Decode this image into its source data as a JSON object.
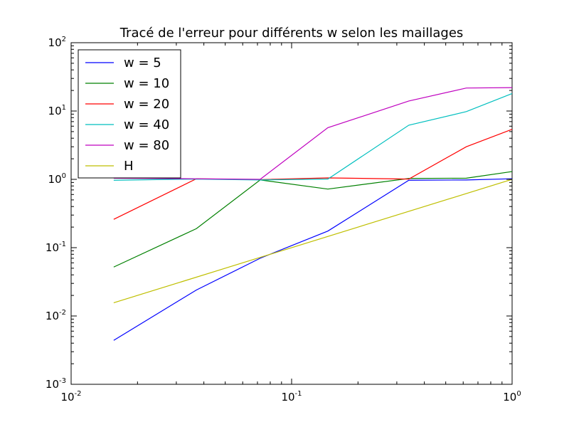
{
  "chart_data": {
    "type": "line",
    "title": "Tracé de l'erreur pour différents w selon les maillages",
    "xlabel": "",
    "ylabel": "",
    "xscale": "log",
    "yscale": "log",
    "xlim": [
      0.01,
      1
    ],
    "ylim": [
      0.001,
      100
    ],
    "xticks": [
      {
        "base": "10",
        "exp": "-2"
      },
      {
        "base": "10",
        "exp": "-1"
      },
      {
        "base": "10",
        "exp": "0"
      }
    ],
    "yticks": [
      {
        "base": "10",
        "exp": "-3"
      },
      {
        "base": "10",
        "exp": "-2"
      },
      {
        "base": "10",
        "exp": "-1"
      },
      {
        "base": "10",
        "exp": "0"
      },
      {
        "base": "10",
        "exp": "1"
      },
      {
        "base": "10",
        "exp": "2"
      }
    ],
    "grid": false,
    "legend_position": "top-left",
    "series": [
      {
        "name": "w = 5",
        "color": "#0000ff",
        "x": [
          0.0156,
          0.037,
          0.072,
          0.146,
          0.34,
          0.62,
          1.0
        ],
        "y": [
          0.0044,
          0.024,
          0.07,
          0.175,
          0.97,
          0.98,
          1.02
        ]
      },
      {
        "name": "w = 10",
        "color": "#008000",
        "x": [
          0.0156,
          0.037,
          0.072,
          0.146,
          0.34,
          0.62,
          1.0
        ],
        "y": [
          0.052,
          0.19,
          0.98,
          0.72,
          1.03,
          1.04,
          1.3
        ]
      },
      {
        "name": "w = 20",
        "color": "#ff0000",
        "x": [
          0.0156,
          0.037,
          0.072,
          0.146,
          0.34,
          0.62,
          1.0
        ],
        "y": [
          0.26,
          1.02,
          0.99,
          1.05,
          1.01,
          3.0,
          5.4
        ]
      },
      {
        "name": "w = 40",
        "color": "#00bfbf",
        "x": [
          0.0156,
          0.037,
          0.072,
          0.146,
          0.34,
          0.62,
          1.0
        ],
        "y": [
          0.97,
          1.01,
          0.98,
          1.01,
          6.2,
          9.8,
          18.0
        ]
      },
      {
        "name": "w = 80",
        "color": "#bf00bf",
        "x": [
          0.0156,
          0.037,
          0.072,
          0.146,
          0.34,
          0.62,
          1.0
        ],
        "y": [
          1.04,
          1.02,
          1.0,
          5.7,
          14.0,
          21.7,
          22.0
        ]
      },
      {
        "name": "H",
        "color": "#bfbf00",
        "x": [
          0.0156,
          1.0
        ],
        "y": [
          0.0156,
          1.0
        ]
      }
    ]
  }
}
